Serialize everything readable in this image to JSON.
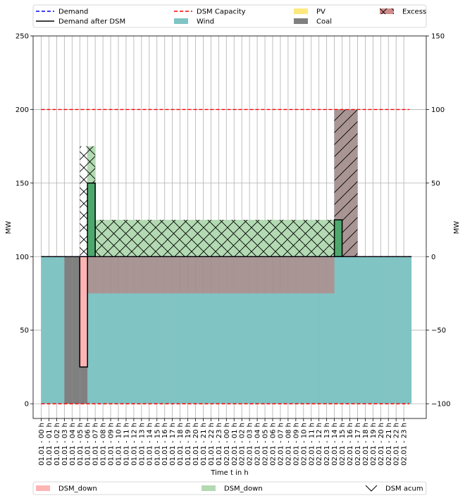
{
  "chart_data": {
    "type": "area",
    "xlabel": "Time t in h",
    "ylabel_left": "MW",
    "ylabel_right": "MW",
    "ylim_left": [
      -10,
      250
    ],
    "ylim_right": [
      -110,
      150
    ],
    "yticks_left": [
      "0",
      "50",
      "100",
      "150",
      "200",
      "250"
    ],
    "yticks_right": [
      "−100",
      "−50",
      "0",
      "50",
      "100",
      "150"
    ],
    "grid": true,
    "legend_top": [
      {
        "key": "demand",
        "label": "Demand",
        "color": "#0000ff",
        "style": "dashed-line"
      },
      {
        "key": "dsm_capacity",
        "label": "DSM Capacity",
        "color": "#ff0000",
        "style": "dashed-line"
      },
      {
        "key": "pv",
        "label": "PV",
        "color": "#ffe97f",
        "style": "patch"
      },
      {
        "key": "excess",
        "label": "Excess",
        "color": "#d08b8b",
        "style": "hatched-patch"
      },
      {
        "key": "demand_after_dsm",
        "label": "Demand after DSM",
        "color": "#000000",
        "style": "line"
      },
      {
        "key": "wind",
        "label": "Wind",
        "color": "#80c4c4",
        "style": "patch"
      },
      {
        "key": "coal",
        "label": "Coal",
        "color": "#808080",
        "style": "patch"
      }
    ],
    "legend_bottom": [
      {
        "key": "dsm_down_red",
        "label": "DSM_down",
        "color": "#ffb4b4",
        "style": "patch"
      },
      {
        "key": "dsm_down_green",
        "label": "DSM_down",
        "color": "#b3dab3",
        "style": "patch"
      },
      {
        "key": "dsm_acum",
        "label": "DSM acum",
        "color": "#000000",
        "style": "hatch"
      }
    ],
    "x": [
      "01.01 - 00 h",
      "01.01 - 01 h",
      "01.01 - 02 h",
      "01.01 - 03 h",
      "01.01 - 04 h",
      "01.01 - 05 h",
      "01.01 - 06 h",
      "01.01 - 07 h",
      "01.01 - 08 h",
      "01.01 - 09 h",
      "01.01 - 10 h",
      "01.01 - 11 h",
      "01.01 - 12 h",
      "01.01 - 13 h",
      "01.01 - 14 h",
      "01.01 - 15 h",
      "01.01 - 16 h",
      "01.01 - 17 h",
      "01.01 - 18 h",
      "01.01 - 19 h",
      "01.01 - 20 h",
      "01.01 - 21 h",
      "01.01 - 22 h",
      "01.01 - 23 h",
      "02.01 - 00 h",
      "02.01 - 01 h",
      "02.01 - 02 h",
      "02.01 - 03 h",
      "02.01 - 04 h",
      "02.01 - 05 h",
      "02.01 - 06 h",
      "02.01 - 07 h",
      "02.01 - 08 h",
      "02.01 - 09 h",
      "02.01 - 10 h",
      "02.01 - 11 h",
      "02.01 - 12 h",
      "02.01 - 13 h",
      "02.01 - 14 h",
      "02.01 - 15 h",
      "02.01 - 16 h",
      "02.01 - 17 h",
      "02.01 - 18 h",
      "02.01 - 19 h",
      "02.01 - 20 h",
      "02.01 - 21 h",
      "02.01 - 22 h",
      "02.01 - 23 h"
    ],
    "series": [
      {
        "key": "demand",
        "name": "Demand",
        "values": [
          100,
          100,
          100,
          100,
          100,
          100,
          100,
          100,
          100,
          100,
          100,
          100,
          100,
          100,
          100,
          100,
          100,
          100,
          100,
          100,
          100,
          100,
          100,
          100,
          100,
          100,
          100,
          100,
          100,
          100,
          100,
          100,
          100,
          100,
          100,
          100,
          100,
          100,
          100,
          100,
          100,
          100,
          100,
          100,
          100,
          100,
          100,
          100
        ]
      },
      {
        "key": "demand_after_dsm",
        "name": "Demand after DSM",
        "values": [
          100,
          100,
          100,
          100,
          100,
          100,
          100,
          100,
          100,
          100,
          100,
          100,
          100,
          100,
          100,
          100,
          100,
          100,
          100,
          100,
          100,
          100,
          100,
          100,
          100,
          100,
          100,
          100,
          100,
          100,
          100,
          100,
          100,
          100,
          100,
          100,
          100,
          100,
          100,
          100,
          100,
          100,
          100,
          100,
          100,
          100,
          100,
          100
        ]
      },
      {
        "key": "dsm_capacity_upper",
        "name": "DSM Capacity",
        "value": 200
      },
      {
        "key": "dsm_capacity_lower",
        "name": "DSM Capacity",
        "value": 0
      },
      {
        "key": "wind",
        "name": "Wind",
        "values": [
          100,
          100,
          100,
          0,
          0,
          0,
          75,
          75,
          75,
          75,
          75,
          75,
          75,
          75,
          75,
          75,
          75,
          75,
          75,
          75,
          75,
          75,
          75,
          75,
          75,
          75,
          75,
          75,
          75,
          75,
          75,
          75,
          75,
          75,
          75,
          75,
          75,
          75,
          100,
          100,
          100,
          100,
          100,
          100,
          100,
          100,
          100,
          100
        ]
      },
      {
        "key": "coal",
        "name": "Coal",
        "values": [
          0,
          0,
          0,
          100,
          100,
          100,
          0,
          0,
          0,
          0,
          0,
          0,
          0,
          0,
          0,
          0,
          0,
          0,
          0,
          0,
          0,
          0,
          0,
          0,
          0,
          0,
          0,
          0,
          0,
          0,
          0,
          0,
          0,
          0,
          0,
          0,
          0,
          0,
          0,
          0,
          0,
          0,
          0,
          0,
          0,
          0,
          0,
          0
        ]
      },
      {
        "key": "excess",
        "name": "Excess",
        "values": [
          0,
          0,
          0,
          0,
          0,
          0,
          25,
          25,
          25,
          25,
          25,
          25,
          25,
          25,
          25,
          25,
          25,
          25,
          25,
          25,
          25,
          25,
          25,
          25,
          25,
          25,
          25,
          25,
          25,
          25,
          25,
          25,
          25,
          25,
          25,
          25,
          25,
          25,
          100,
          100,
          100,
          0,
          0,
          0,
          0,
          0,
          0,
          0
        ]
      },
      {
        "key": "dsm_down_red",
        "name": "DSM_down",
        "bars": [
          {
            "index": 5,
            "from": 25,
            "to": 100
          }
        ]
      },
      {
        "key": "dsm_up_green",
        "name": "DSM_down",
        "bars": [
          {
            "index": 6,
            "from": 100,
            "to": 150
          },
          {
            "index": 38,
            "from": 100,
            "to": 125
          }
        ]
      },
      {
        "key": "dsm_acum_green",
        "name": "DSM acum",
        "values": [
          0,
          0,
          0,
          0,
          0,
          0,
          175,
          125,
          125,
          125,
          125,
          125,
          125,
          125,
          125,
          125,
          125,
          125,
          125,
          125,
          125,
          125,
          125,
          125,
          125,
          125,
          125,
          125,
          125,
          125,
          125,
          125,
          125,
          125,
          125,
          125,
          125,
          125,
          125,
          0,
          0,
          0,
          0,
          0,
          0,
          0,
          0,
          0
        ]
      }
    ]
  }
}
